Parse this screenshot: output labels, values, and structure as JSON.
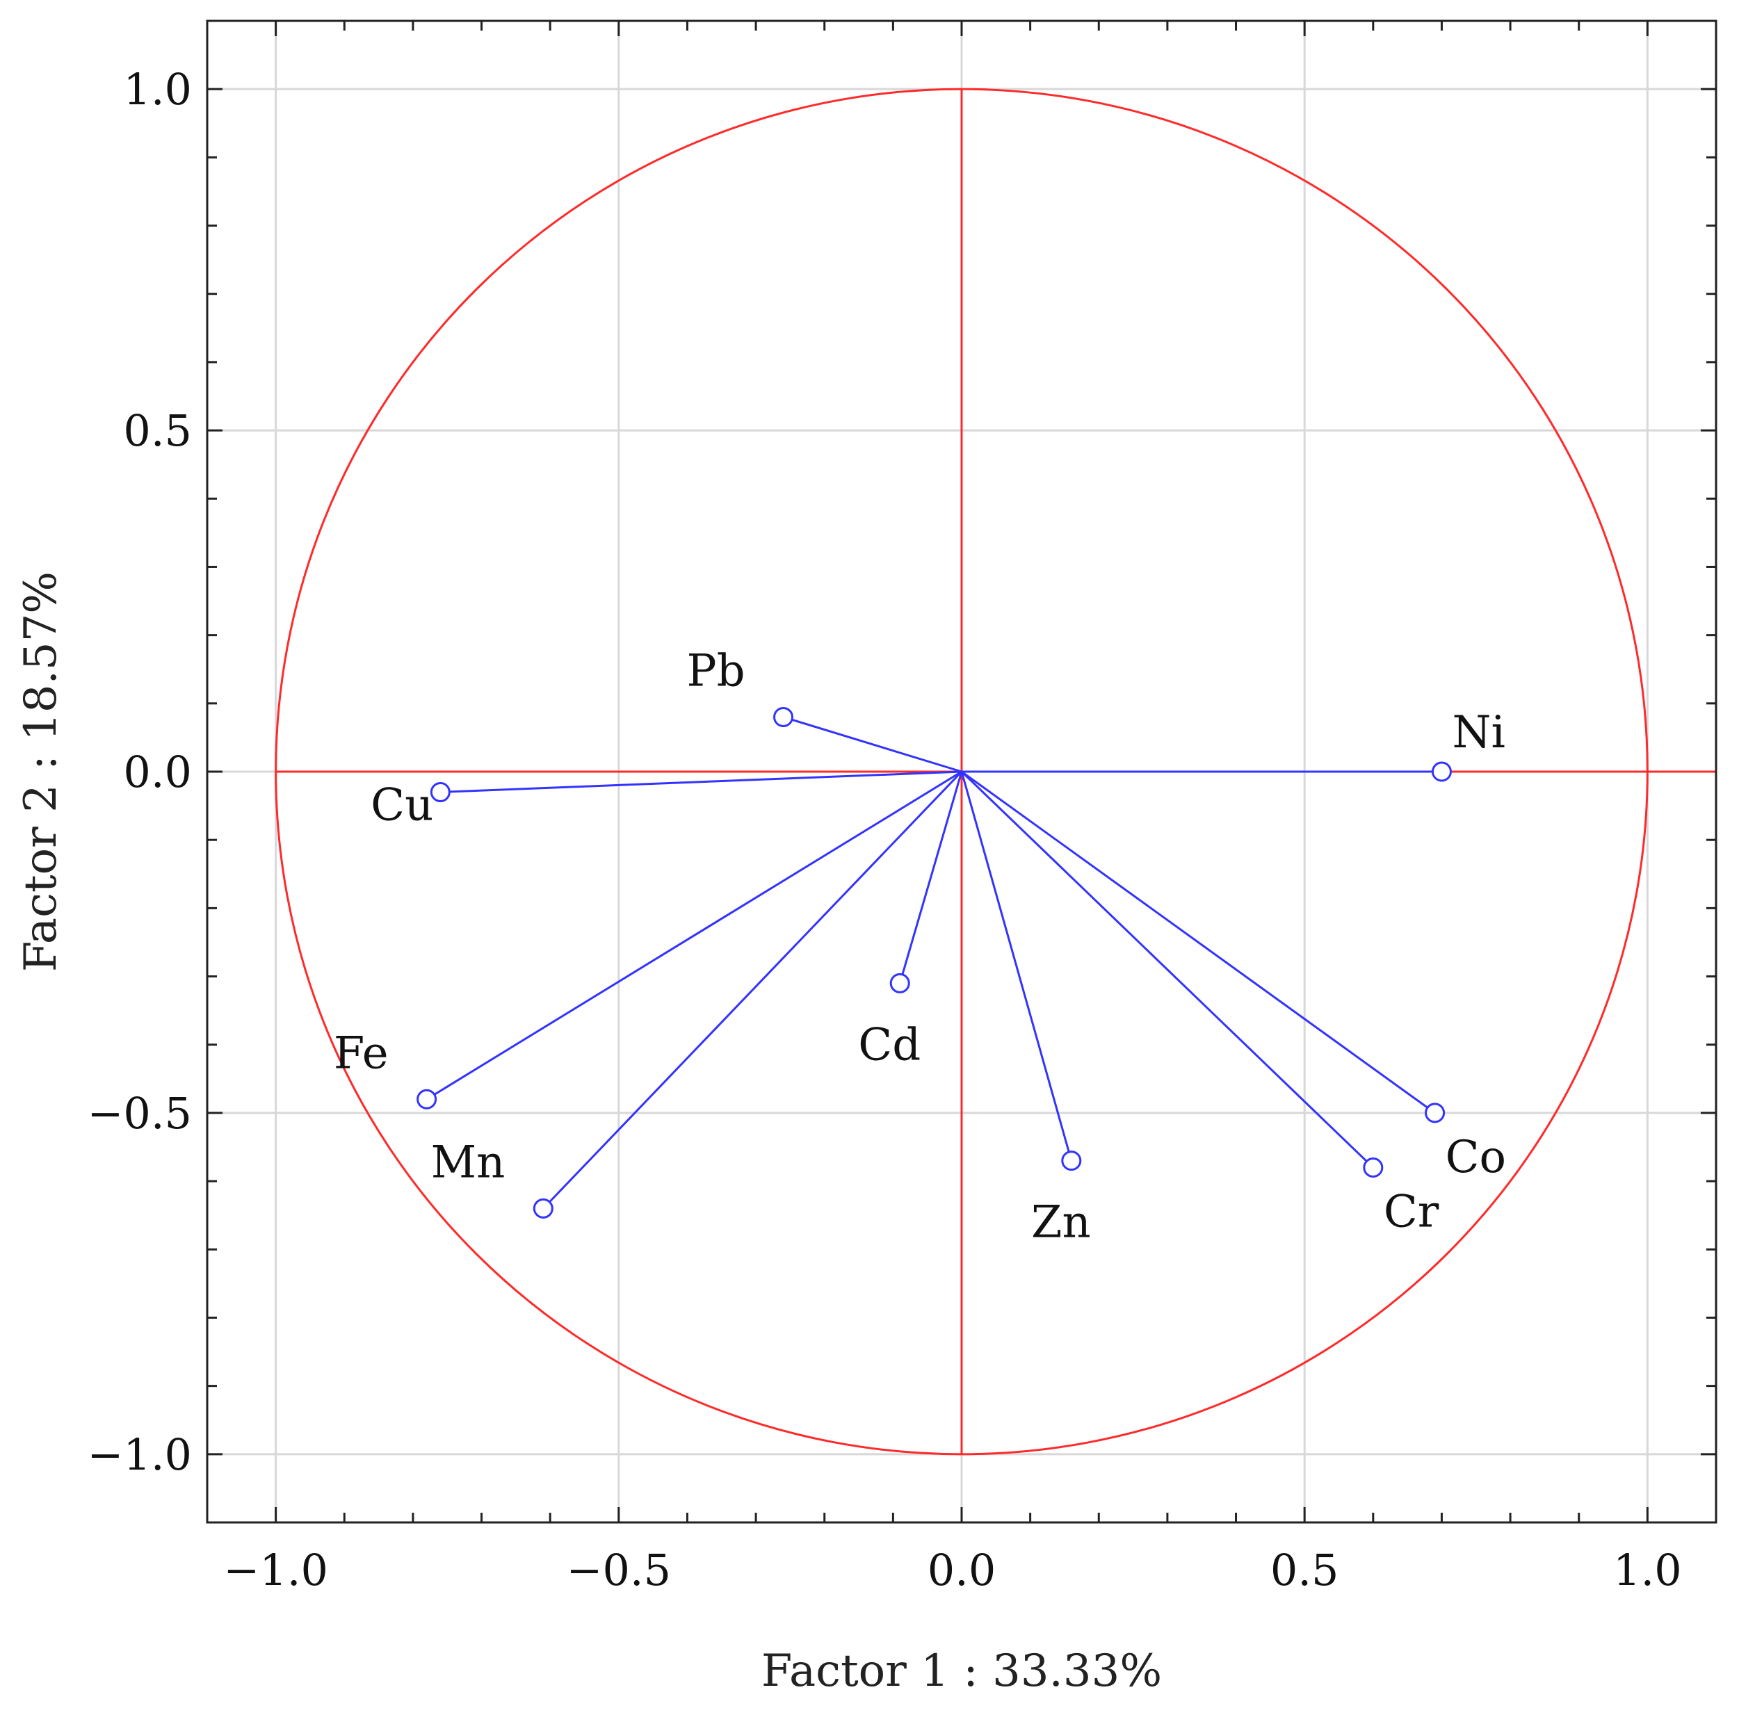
{
  "chart_data": {
    "type": "scatter",
    "subtype": "pca-loading-circle",
    "title": "",
    "xlabel": "Factor 1 : 33.33%",
    "ylabel": "Factor 2 : 18.57%",
    "xlim": [
      -1.1,
      1.1
    ],
    "ylim": [
      -1.1,
      1.1
    ],
    "xticks": [
      -1.0,
      -0.5,
      0.0,
      0.5,
      1.0
    ],
    "xtick_labels": [
      "−1.0",
      "−0.5",
      "0.0",
      "0.5",
      "1.0"
    ],
    "yticks": [
      -1.0,
      -0.5,
      0.0,
      0.5,
      1.0
    ],
    "ytick_labels": [
      "−1.0",
      "−0.5",
      "0.0",
      "0.5",
      "1.0"
    ],
    "grid": true,
    "unit_circle": true,
    "points": [
      {
        "name": "Pb",
        "x": -0.26,
        "y": 0.08,
        "label_pos": "upper-left"
      },
      {
        "name": "Ni",
        "x": 0.7,
        "y": 0.0,
        "label_pos": "upper-right"
      },
      {
        "name": "Cu",
        "x": -0.76,
        "y": -0.03,
        "label_pos": "left"
      },
      {
        "name": "Cd",
        "x": -0.09,
        "y": -0.31,
        "label_pos": "below"
      },
      {
        "name": "Fe",
        "x": -0.78,
        "y": -0.48,
        "label_pos": "upper-left"
      },
      {
        "name": "Mn",
        "x": -0.61,
        "y": -0.64,
        "label_pos": "upper-left"
      },
      {
        "name": "Zn",
        "x": 0.16,
        "y": -0.57,
        "label_pos": "below"
      },
      {
        "name": "Cr",
        "x": 0.6,
        "y": -0.58,
        "label_pos": "below-right"
      },
      {
        "name": "Co",
        "x": 0.69,
        "y": -0.5,
        "label_pos": "below-right"
      }
    ],
    "colors": {
      "circle": "#ff2a2a",
      "vectors": "#3333ff",
      "grid": "#d8d8d8",
      "frame": "#222222"
    }
  }
}
